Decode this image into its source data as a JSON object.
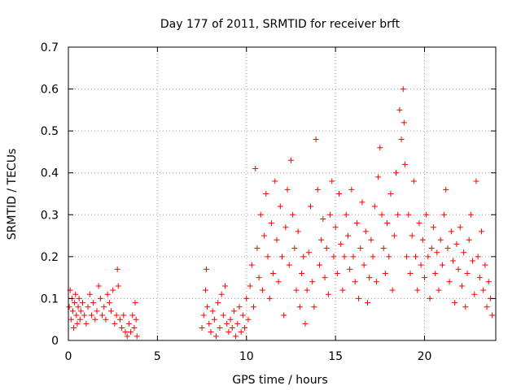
{
  "chart_data": {
    "type": "scatter",
    "title": "Day 177 of 2011, SRMTID for receiver brft",
    "xlabel": "GPS time / hours",
    "ylabel": "SRMTID / TECUs",
    "xlim": [
      0,
      24
    ],
    "ylim": [
      0,
      0.7
    ],
    "xticks": [
      0,
      5,
      10,
      15,
      20
    ],
    "xtick_labels": [
      "0",
      "5",
      "10",
      "15",
      "20"
    ],
    "yticks": [
      0,
      0.1,
      0.2,
      0.3,
      0.4,
      0.5,
      0.6,
      0.7
    ],
    "ytick_labels": [
      "0",
      "0.1",
      "0.2",
      "0.3",
      "0.4",
      "0.5",
      "0.6",
      "0.7"
    ],
    "grid": true,
    "marker": "+",
    "series": [
      {
        "name": "SRMTID",
        "color": "#ff0000",
        "points": [
          [
            0.05,
            0.08
          ],
          [
            0.1,
            0.12
          ],
          [
            0.15,
            0.05
          ],
          [
            0.2,
            0.1
          ],
          [
            0.25,
            0.07
          ],
          [
            0.3,
            0.03
          ],
          [
            0.35,
            0.09
          ],
          [
            0.4,
            0.11
          ],
          [
            0.45,
            0.06
          ],
          [
            0.5,
            0.04
          ],
          [
            0.55,
            0.08
          ],
          [
            0.6,
            0.1
          ],
          [
            0.65,
            0.05
          ],
          [
            0.7,
            0.07
          ],
          [
            0.8,
            0.09
          ],
          [
            0.9,
            0.06
          ],
          [
            1.0,
            0.04
          ],
          [
            1.1,
            0.08
          ],
          [
            1.2,
            0.11
          ],
          [
            1.3,
            0.06
          ],
          [
            1.4,
            0.09
          ],
          [
            1.5,
            0.05
          ],
          [
            1.6,
            0.07
          ],
          [
            1.7,
            0.13
          ],
          [
            1.8,
            0.1
          ],
          [
            1.9,
            0.06
          ],
          [
            2.0,
            0.08
          ],
          [
            2.1,
            0.05
          ],
          [
            2.2,
            0.11
          ],
          [
            2.3,
            0.09
          ],
          [
            2.4,
            0.07
          ],
          [
            2.5,
            0.12
          ],
          [
            2.6,
            0.04
          ],
          [
            2.7,
            0.06
          ],
          [
            2.75,
            0.17
          ],
          [
            2.8,
            0.13
          ],
          [
            2.9,
            0.05
          ],
          [
            3.0,
            0.03
          ],
          [
            3.1,
            0.06
          ],
          [
            3.2,
            0.02
          ],
          [
            3.3,
            0.01
          ],
          [
            3.4,
            0.04
          ],
          [
            3.5,
            0.02
          ],
          [
            3.6,
            0.06
          ],
          [
            3.7,
            0.03
          ],
          [
            3.75,
            0.09
          ],
          [
            3.8,
            0.05
          ],
          [
            3.85,
            0.01
          ],
          [
            7.5,
            0.03
          ],
          [
            7.6,
            0.06
          ],
          [
            7.7,
            0.12
          ],
          [
            7.75,
            0.17
          ],
          [
            7.8,
            0.08
          ],
          [
            7.9,
            0.04
          ],
          [
            8.0,
            0.02
          ],
          [
            8.1,
            0.07
          ],
          [
            8.2,
            0.05
          ],
          [
            8.3,
            0.01
          ],
          [
            8.4,
            0.09
          ],
          [
            8.5,
            0.03
          ],
          [
            8.6,
            0.11
          ],
          [
            8.7,
            0.06
          ],
          [
            8.8,
            0.13
          ],
          [
            8.9,
            0.04
          ],
          [
            9.0,
            0.02
          ],
          [
            9.1,
            0.05
          ],
          [
            9.2,
            0.03
          ],
          [
            9.3,
            0.07
          ],
          [
            9.4,
            0.01
          ],
          [
            9.5,
            0.04
          ],
          [
            9.6,
            0.08
          ],
          [
            9.7,
            0.02
          ],
          [
            9.8,
            0.06
          ],
          [
            9.9,
            0.03
          ],
          [
            10.0,
            0.1
          ],
          [
            10.1,
            0.05
          ],
          [
            10.2,
            0.13
          ],
          [
            10.3,
            0.18
          ],
          [
            10.4,
            0.08
          ],
          [
            10.5,
            0.41
          ],
          [
            10.6,
            0.22
          ],
          [
            10.7,
            0.15
          ],
          [
            10.8,
            0.3
          ],
          [
            10.9,
            0.12
          ],
          [
            11.0,
            0.25
          ],
          [
            11.1,
            0.35
          ],
          [
            11.2,
            0.2
          ],
          [
            11.3,
            0.1
          ],
          [
            11.4,
            0.28
          ],
          [
            11.5,
            0.16
          ],
          [
            11.6,
            0.38
          ],
          [
            11.7,
            0.24
          ],
          [
            11.8,
            0.14
          ],
          [
            11.9,
            0.32
          ],
          [
            12.0,
            0.2
          ],
          [
            12.1,
            0.06
          ],
          [
            12.2,
            0.27
          ],
          [
            12.3,
            0.36
          ],
          [
            12.4,
            0.18
          ],
          [
            12.5,
            0.43
          ],
          [
            12.6,
            0.3
          ],
          [
            12.7,
            0.22
          ],
          [
            12.8,
            0.12
          ],
          [
            12.9,
            0.26
          ],
          [
            13.0,
            0.08
          ],
          [
            13.1,
            0.16
          ],
          [
            13.2,
            0.2
          ],
          [
            13.3,
            0.04
          ],
          [
            13.4,
            0.12
          ],
          [
            13.5,
            0.21
          ],
          [
            13.6,
            0.32
          ],
          [
            13.7,
            0.14
          ],
          [
            13.8,
            0.08
          ],
          [
            13.9,
            0.48
          ],
          [
            14.0,
            0.36
          ],
          [
            14.1,
            0.18
          ],
          [
            14.2,
            0.24
          ],
          [
            14.3,
            0.29
          ],
          [
            14.4,
            0.15
          ],
          [
            14.5,
            0.22
          ],
          [
            14.6,
            0.11
          ],
          [
            14.7,
            0.3
          ],
          [
            14.8,
            0.38
          ],
          [
            14.9,
            0.2
          ],
          [
            15.0,
            0.27
          ],
          [
            15.1,
            0.16
          ],
          [
            15.2,
            0.35
          ],
          [
            15.3,
            0.23
          ],
          [
            15.4,
            0.12
          ],
          [
            15.5,
            0.2
          ],
          [
            15.6,
            0.3
          ],
          [
            15.7,
            0.25
          ],
          [
            15.8,
            0.17
          ],
          [
            15.9,
            0.36
          ],
          [
            16.0,
            0.2
          ],
          [
            16.1,
            0.14
          ],
          [
            16.2,
            0.28
          ],
          [
            16.3,
            0.1
          ],
          [
            16.4,
            0.22
          ],
          [
            16.5,
            0.33
          ],
          [
            16.6,
            0.18
          ],
          [
            16.7,
            0.26
          ],
          [
            16.8,
            0.09
          ],
          [
            16.9,
            0.15
          ],
          [
            17.0,
            0.24
          ],
          [
            17.1,
            0.2
          ],
          [
            17.2,
            0.32
          ],
          [
            17.3,
            0.14
          ],
          [
            17.4,
            0.39
          ],
          [
            17.5,
            0.46
          ],
          [
            17.6,
            0.3
          ],
          [
            17.7,
            0.22
          ],
          [
            17.8,
            0.16
          ],
          [
            17.9,
            0.28
          ],
          [
            18.0,
            0.2
          ],
          [
            18.1,
            0.35
          ],
          [
            18.2,
            0.12
          ],
          [
            18.3,
            0.25
          ],
          [
            18.4,
            0.4
          ],
          [
            18.5,
            0.3
          ],
          [
            18.6,
            0.55
          ],
          [
            18.7,
            0.48
          ],
          [
            18.8,
            0.6
          ],
          [
            18.85,
            0.52
          ],
          [
            18.9,
            0.42
          ],
          [
            19.0,
            0.2
          ],
          [
            19.1,
            0.3
          ],
          [
            19.2,
            0.16
          ],
          [
            19.3,
            0.25
          ],
          [
            19.4,
            0.38
          ],
          [
            19.5,
            0.2
          ],
          [
            19.6,
            0.12
          ],
          [
            19.7,
            0.28
          ],
          [
            19.8,
            0.18
          ],
          [
            19.9,
            0.24
          ],
          [
            20.0,
            0.15
          ],
          [
            20.1,
            0.3
          ],
          [
            20.2,
            0.2
          ],
          [
            20.3,
            0.1
          ],
          [
            20.4,
            0.22
          ],
          [
            20.5,
            0.27
          ],
          [
            20.6,
            0.16
          ],
          [
            20.7,
            0.21
          ],
          [
            20.8,
            0.12
          ],
          [
            20.9,
            0.24
          ],
          [
            21.0,
            0.18
          ],
          [
            21.1,
            0.3
          ],
          [
            21.2,
            0.36
          ],
          [
            21.3,
            0.22
          ],
          [
            21.4,
            0.14
          ],
          [
            21.5,
            0.26
          ],
          [
            21.6,
            0.19
          ],
          [
            21.7,
            0.09
          ],
          [
            21.8,
            0.23
          ],
          [
            21.9,
            0.17
          ],
          [
            22.0,
            0.27
          ],
          [
            22.1,
            0.13
          ],
          [
            22.2,
            0.21
          ],
          [
            22.3,
            0.08
          ],
          [
            22.4,
            0.16
          ],
          [
            22.5,
            0.24
          ],
          [
            22.6,
            0.3
          ],
          [
            22.7,
            0.19
          ],
          [
            22.8,
            0.11
          ],
          [
            22.9,
            0.38
          ],
          [
            23.0,
            0.2
          ],
          [
            23.1,
            0.15
          ],
          [
            23.2,
            0.26
          ],
          [
            23.3,
            0.12
          ],
          [
            23.4,
            0.18
          ],
          [
            23.5,
            0.08
          ],
          [
            23.6,
            0.14
          ],
          [
            23.7,
            0.1
          ],
          [
            23.8,
            0.06
          ]
        ]
      }
    ]
  }
}
